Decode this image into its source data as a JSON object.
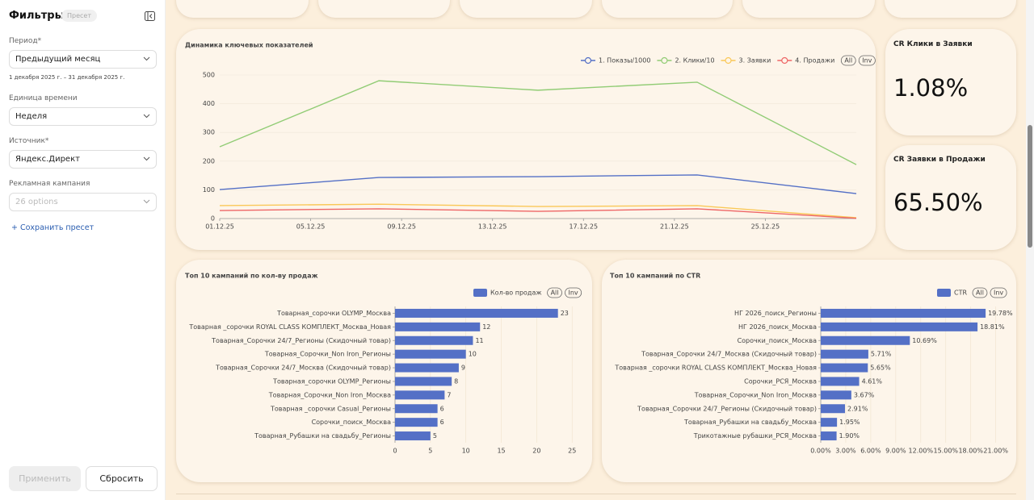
{
  "sidebar": {
    "title": "Фильтры",
    "badge": "Пресет",
    "fields": [
      {
        "label": "Период*",
        "value": "Предыдущий месяц",
        "hint": "1 декабря 2025 г. – 31 декабря 2025 г."
      },
      {
        "label": "Единица времени",
        "value": "Неделя"
      },
      {
        "label": "Источник*",
        "value": "Яндекс.Директ"
      },
      {
        "label": "Рекламная кампания",
        "placeholder": "26 options"
      }
    ],
    "save_preset": "+ Сохранить пресет",
    "apply": "Применить",
    "reset": "Сбросить"
  },
  "kpis": [
    {
      "title": "CR Клики в Заявки",
      "value": "1.08%"
    },
    {
      "title": "CR Заявки в Продажи",
      "value": "65.50%"
    }
  ],
  "chart_data": [
    {
      "type": "line",
      "title": "Динамика ключевых показателей",
      "x": [
        "01.12.25",
        "08.12.25",
        "15.12.25",
        "22.12.25",
        "29.12.25"
      ],
      "series": [
        {
          "name": "1. Показы/1000",
          "color": "#5470c6",
          "values": [
            101,
            143,
            146,
            152,
            87
          ]
        },
        {
          "name": "2. Клики/10",
          "color": "#91cc75",
          "values": [
            250,
            480,
            447,
            475,
            188
          ]
        },
        {
          "name": "3. Заявки",
          "color": "#fac858",
          "values": [
            45,
            50,
            42,
            45,
            3
          ]
        },
        {
          "name": "4. Продажи",
          "color": "#ee6666",
          "values": [
            28,
            34,
            25,
            34,
            1
          ]
        }
      ],
      "xlim": [
        "01.12.25",
        "29.12.25"
      ],
      "xticks": [
        "01.12.25",
        "05.12.25",
        "09.12.25",
        "13.12.25",
        "17.12.25",
        "21.12.25",
        "25.12.25"
      ],
      "ylim": [
        0,
        500
      ],
      "yticks": [
        0,
        100,
        200,
        300,
        400,
        500
      ],
      "grid": true,
      "controls": [
        "All",
        "Inv"
      ]
    },
    {
      "type": "bar",
      "orientation": "horizontal",
      "title": "Топ 10 кампаний по кол-ву продаж",
      "categories": [
        "Товарная_сорочки OLYMP_Москва",
        "Товарная _сорочки ROYAL CLASS КОМПЛЕКТ_Москва_Новая",
        "Товарная_Сорочки 24/7_Регионы (Скидочный товар)",
        "Товарная_Сорочки_Non Iron_Регионы",
        "Товарная_Сорочки 24/7_Москва (Скидочный товар)",
        "Товарная_сорочки OLYMP_Регионы",
        "Товарная_Сорочки_Non Iron_Москва",
        "Товарная _сорочки Casual_Регионы",
        "Сорочки_поиск_Москва",
        "Товарная_Рубашки на свадьбу_Регионы"
      ],
      "series": [
        {
          "name": "Кол-во продаж",
          "color": "#5470c6",
          "values": [
            23,
            12,
            11,
            10,
            9,
            8,
            7,
            6,
            6,
            5
          ]
        }
      ],
      "xlim": [
        0,
        26
      ],
      "xticks": [
        0,
        5,
        10,
        15,
        20,
        25
      ],
      "grid": true,
      "controls": [
        "All",
        "Inv"
      ]
    },
    {
      "type": "bar",
      "orientation": "horizontal",
      "title": "Топ 10 кампаний по CTR",
      "categories": [
        "НГ 2026_поиск_Регионы",
        "НГ 2026_поиск_Москва",
        "Сорочки_поиск_Москва",
        "Товарная_Сорочки 24/7_Москва (Скидочный товар)",
        "Товарная _сорочки ROYAL CLASS КОМПЛЕКТ_Москва_Новая",
        "Сорочки_РСЯ_Москва",
        "Товарная_Сорочки_Non Iron_Москва",
        "Товарная_Сорочки 24/7_Регионы (Скидочный товар)",
        "Товарная_Рубашки на свадьбу_Москва",
        "Трикотажные рубашки_РСЯ_Москва"
      ],
      "series": [
        {
          "name": "CTR",
          "color": "#5470c6",
          "values": [
            19.78,
            18.81,
            10.69,
            5.71,
            5.65,
            4.61,
            3.67,
            2.91,
            1.95,
            1.9
          ],
          "value_labels": [
            "19.78%",
            "18.81%",
            "10.69%",
            "5.71%",
            "5.65%",
            "4.61%",
            "3.67%",
            "2.91%",
            "1.95%",
            "1.90%"
          ]
        }
      ],
      "xlim": [
        0,
        22
      ],
      "xticks": [
        {
          "value": 0,
          "label": "0.00%"
        },
        {
          "value": 3,
          "label": "3.00%"
        },
        {
          "value": 6,
          "label": "6.00%"
        },
        {
          "value": 9,
          "label": "9.00%"
        },
        {
          "value": 12,
          "label": "12.00%"
        },
        {
          "value": 15,
          "label": "15.00%"
        },
        {
          "value": 18,
          "label": "18.00%"
        },
        {
          "value": 21,
          "label": "21.00%"
        }
      ],
      "grid": true,
      "controls": [
        "All",
        "Inv"
      ]
    }
  ]
}
